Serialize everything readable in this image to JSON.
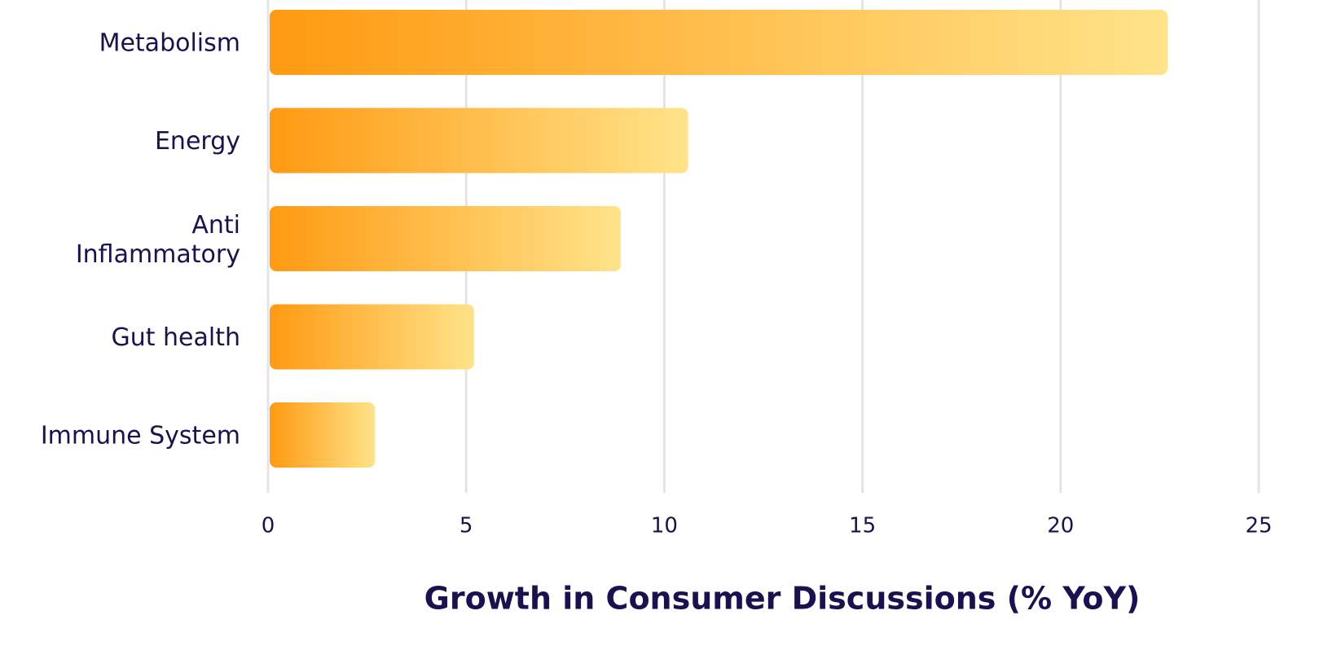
{
  "chart_data": {
    "type": "barh",
    "xlabel": "Growth in Consumer Discussions (% YoY)",
    "categories": [
      "Metabolism",
      "Energy",
      "Anti\nInflammatory",
      "Gut health",
      "Immune System"
    ],
    "values": [
      22.7,
      10.6,
      8.9,
      5.2,
      2.7
    ],
    "color": [
      "#ff9a12",
      "#ffe38a"
    ],
    "xlim": [
      0,
      25
    ],
    "xticks": [
      0,
      5,
      10,
      15,
      20,
      25
    ],
    "grid": true
  }
}
